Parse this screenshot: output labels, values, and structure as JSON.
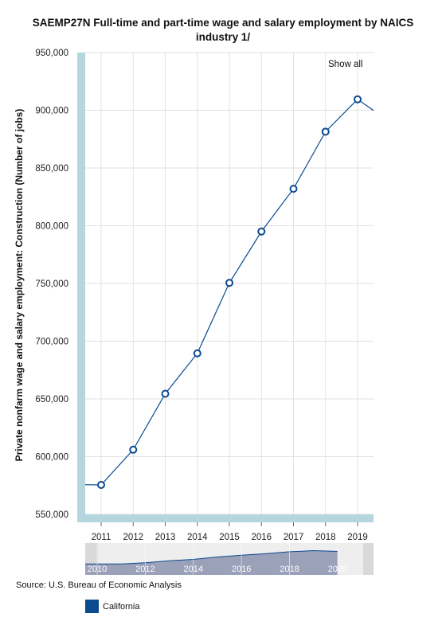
{
  "title_lines": [
    "SAEMP27N Full-time and part-time wage and salary employment by NAICS",
    "industry 1/"
  ],
  "show_all_label": "Show all",
  "source_label": "Source: U.S. Bureau of Economic Analysis",
  "colors": {
    "series": "#0b4a8f",
    "axis_band": "#b6d6de",
    "grid": "#e2e2e2",
    "navigator_fill": "#9aa1b8",
    "navigator_bg": "#d9d9d9"
  },
  "navigator": {
    "ticks": [
      "2010",
      "2012",
      "2014",
      "2016",
      "2018",
      "2020"
    ]
  },
  "chart_data": {
    "type": "line",
    "title": "SAEMP27N Full-time and part-time wage and salary employment by NAICS industry 1/",
    "ylabel": "Private nonfarm wage and salary employment: Construction (Number of jobs)",
    "xlabel": "",
    "ylim": [
      550000,
      950000
    ],
    "yticks": [
      "550,000",
      "600,000",
      "650,000",
      "700,000",
      "750,000",
      "800,000",
      "850,000",
      "900,000",
      "950,000"
    ],
    "categories": [
      "2011",
      "2012",
      "2013",
      "2014",
      "2015",
      "2016",
      "2017",
      "2018",
      "2019"
    ],
    "grid": true,
    "legend_position": "bottom-left",
    "series": [
      {
        "name": "California",
        "x": [
          2010,
          2011,
          2012,
          2013,
          2014,
          2015,
          2016,
          2017,
          2018,
          2019,
          2020
        ],
        "values": [
          576000,
          575500,
          606000,
          654500,
          689500,
          750500,
          795000,
          832000,
          881500,
          909500,
          890000
        ],
        "markers": [
          false,
          true,
          true,
          true,
          true,
          true,
          true,
          true,
          true,
          true,
          false
        ]
      }
    ]
  }
}
